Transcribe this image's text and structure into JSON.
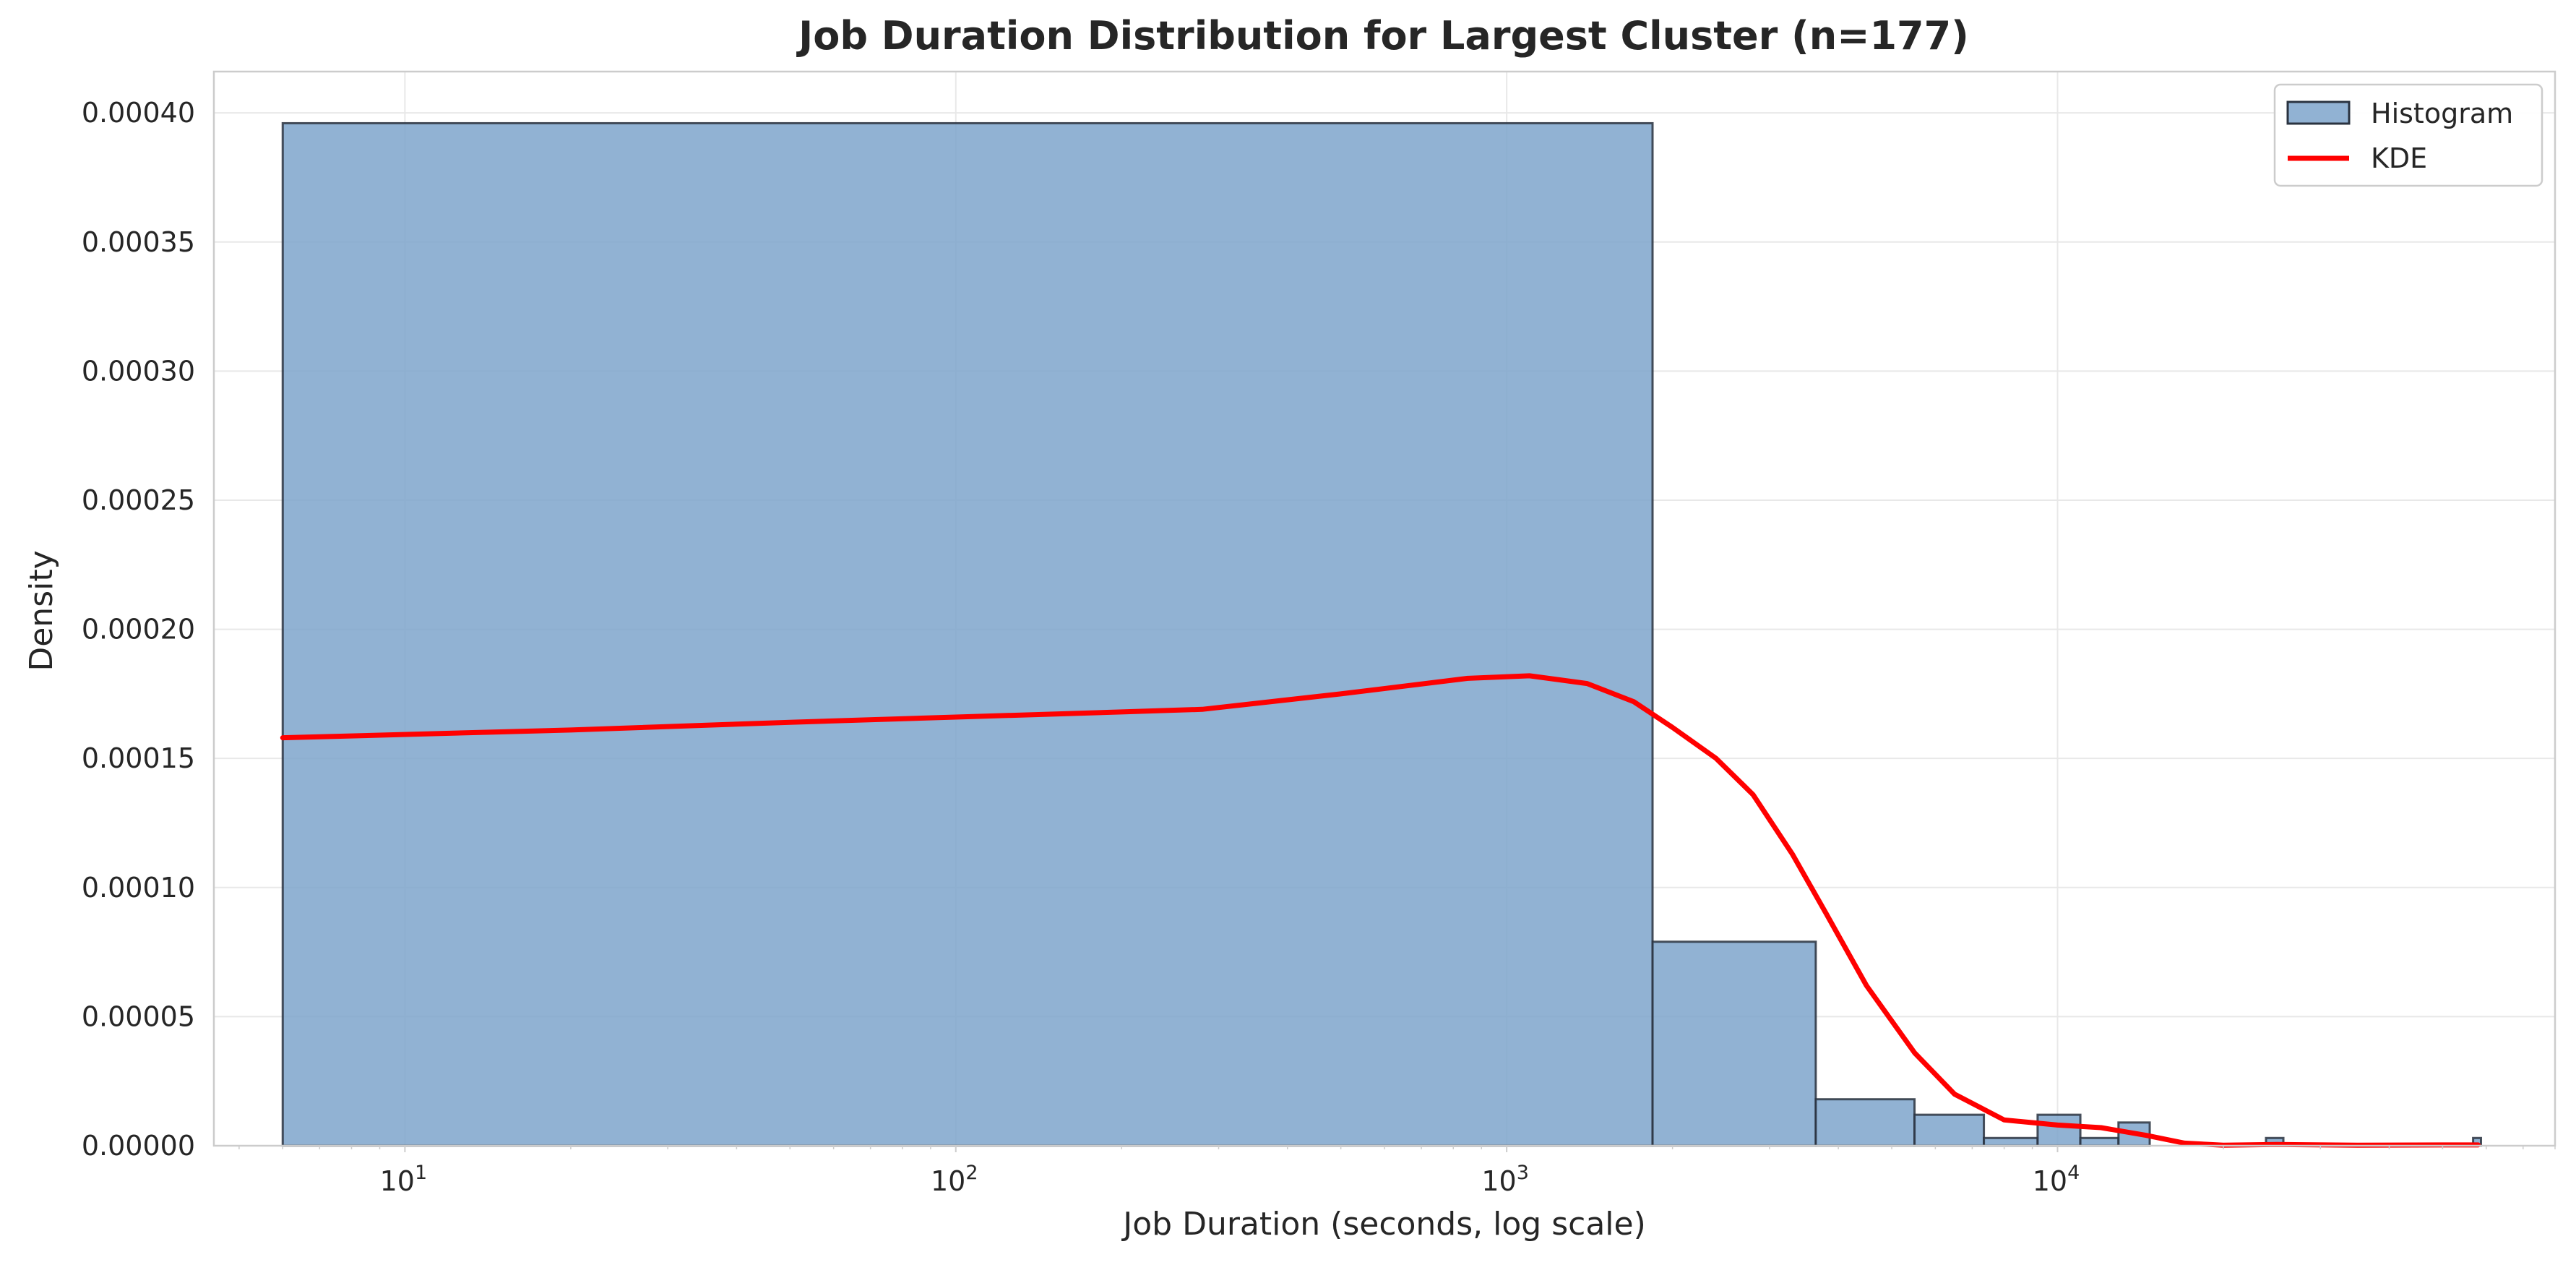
{
  "chart_data": {
    "type": "bar",
    "title": "Job Duration Distribution for Largest Cluster (n=177)",
    "xlabel": "Job Duration (seconds, log scale)",
    "ylabel": "Density",
    "x_scale": "log",
    "xlim": [
      4.5,
      80000
    ],
    "ylim": [
      0,
      0.000416
    ],
    "grid": true,
    "legend_position": "top-right",
    "x_ticks": [
      {
        "value": 10,
        "base": "10",
        "exp": "1"
      },
      {
        "value": 100,
        "base": "10",
        "exp": "2"
      },
      {
        "value": 1000,
        "base": "10",
        "exp": "3"
      },
      {
        "value": 10000,
        "base": "10",
        "exp": "4"
      }
    ],
    "y_ticks": [
      {
        "value": 0,
        "label": "0.00000"
      },
      {
        "value": 5e-05,
        "label": "0.00005"
      },
      {
        "value": 0.0001,
        "label": "0.00010"
      },
      {
        "value": 0.00015,
        "label": "0.00015"
      },
      {
        "value": 0.0002,
        "label": "0.00020"
      },
      {
        "value": 0.00025,
        "label": "0.00025"
      },
      {
        "value": 0.0003,
        "label": "0.00030"
      },
      {
        "value": 0.00035,
        "label": "0.00035"
      },
      {
        "value": 0.0004,
        "label": "0.00040"
      }
    ],
    "series": [
      {
        "name": "Histogram",
        "kind": "histogram",
        "color": "#7ea5cb",
        "edge_color": "#2a3340",
        "bins": [
          {
            "x0": 6,
            "x1": 1840,
            "density": 0.000396
          },
          {
            "x0": 1840,
            "x1": 3640,
            "density": 7.9e-05
          },
          {
            "x0": 3640,
            "x1": 5500,
            "density": 1.8e-05
          },
          {
            "x0": 5500,
            "x1": 7350,
            "density": 1.2e-05
          },
          {
            "x0": 7350,
            "x1": 9200,
            "density": 3e-06
          },
          {
            "x0": 9200,
            "x1": 11000,
            "density": 1.2e-05
          },
          {
            "x0": 11000,
            "x1": 12900,
            "density": 3e-06
          },
          {
            "x0": 12900,
            "x1": 14700,
            "density": 9e-06
          },
          {
            "x0": 14700,
            "x1": 16500,
            "density": 0.0
          },
          {
            "x0": 23900,
            "x1": 25700,
            "density": 3e-06
          },
          {
            "x0": 56800,
            "x1": 58700,
            "density": 3e-06
          }
        ]
      },
      {
        "name": "KDE",
        "kind": "line",
        "color": "#ff0000",
        "x": [
          6,
          20,
          50,
          100,
          200,
          280,
          500,
          850,
          1100,
          1400,
          1700,
          2000,
          2400,
          2800,
          3300,
          3800,
          4500,
          5500,
          6500,
          8000,
          10000,
          12000,
          14500,
          17000,
          20000,
          25000,
          35000,
          50000,
          58000
        ],
        "y": [
          0.000158,
          0.000161,
          0.000164,
          0.000166,
          0.000168,
          0.000169,
          0.000175,
          0.000181,
          0.000182,
          0.000179,
          0.000172,
          0.000162,
          0.00015,
          0.000136,
          0.000113,
          9e-05,
          6.2e-05,
          3.6e-05,
          2e-05,
          1e-05,
          8e-06,
          7e-06,
          4e-06,
          1e-06,
          2e-07,
          5e-07,
          2e-07,
          3e-07,
          3e-07
        ]
      }
    ]
  }
}
